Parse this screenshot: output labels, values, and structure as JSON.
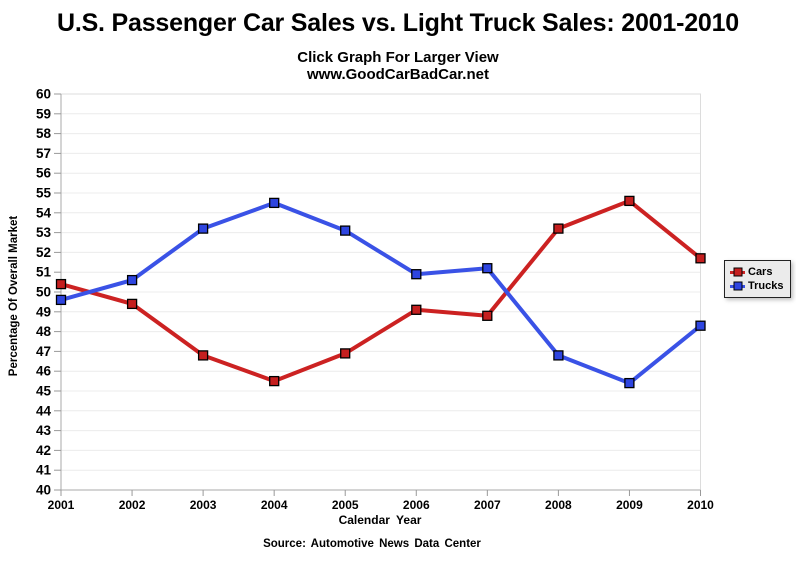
{
  "header": {
    "title": "U.S. Passenger Car Sales vs. Light Truck Sales: 2001-2010",
    "subtitle1": "Click Graph For Larger View",
    "subtitle2": "www.GoodCarBadCar.net"
  },
  "footer": {
    "source": "Source: Automotive News Data Center"
  },
  "chart_data": {
    "type": "line",
    "title": "U.S. Passenger Car Sales vs. Light Truck Sales: 2001-2010",
    "xlabel": "Calendar Year",
    "ylabel": "Percentage Of Overall Market",
    "categories": [
      "2001",
      "2002",
      "2003",
      "2004",
      "2005",
      "2006",
      "2007",
      "2008",
      "2009",
      "2010"
    ],
    "series": [
      {
        "name": "Cars",
        "color": "#cc2222",
        "marker_color": "#c51f1f",
        "values": [
          50.4,
          49.4,
          46.8,
          45.5,
          46.9,
          49.1,
          48.8,
          53.2,
          54.6,
          51.7
        ]
      },
      {
        "name": "Trucks",
        "color": "#3a52e6",
        "marker_color": "#2e45e0",
        "values": [
          49.6,
          50.6,
          53.2,
          54.5,
          53.1,
          50.9,
          51.2,
          46.8,
          45.4,
          48.3
        ]
      }
    ],
    "ylim": [
      40,
      60
    ],
    "ytick_step": 1,
    "grid": true,
    "grid_color": "#ececec",
    "frame_color": "#dcdcdc",
    "axis_color": "#a8a8a8",
    "tick_color": "#999999",
    "legend_position": "right",
    "legend_bg": "#ebebeb"
  }
}
